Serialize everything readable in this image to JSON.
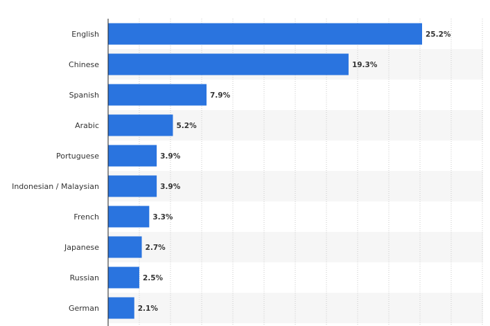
{
  "chart_data": {
    "type": "bar",
    "orientation": "horizontal",
    "categories": [
      "English",
      "Chinese",
      "Spanish",
      "Arabic",
      "Portuguese",
      "Indonesian / Malaysian",
      "French",
      "Japanese",
      "Russian",
      "German"
    ],
    "values": [
      25.2,
      19.3,
      7.9,
      5.2,
      3.9,
      3.9,
      3.3,
      2.7,
      2.5,
      2.1
    ],
    "value_labels": [
      "25.2%",
      "19.3%",
      "7.9%",
      "5.2%",
      "3.9%",
      "3.9%",
      "3.3%",
      "2.7%",
      "2.5%",
      "2.1%"
    ],
    "xlim": [
      0,
      30
    ],
    "grid": true,
    "bar_color": "#2a74df",
    "stripe_color": "#f6f6f6",
    "grid_color": "#c9c9c9",
    "axis_color": "#222222",
    "title": "",
    "xlabel": "",
    "ylabel": ""
  }
}
